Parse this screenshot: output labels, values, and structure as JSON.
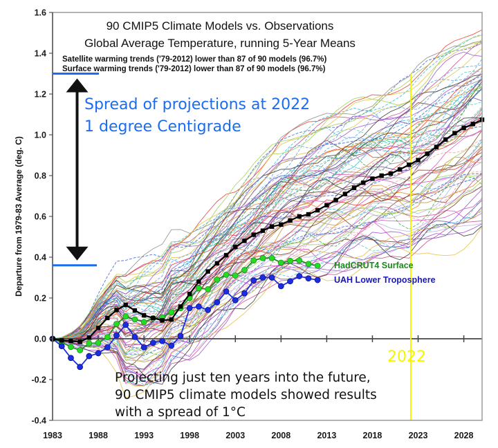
{
  "chart_data": {
    "type": "line",
    "title": "90 CMIP5 Climate Models vs. Observations",
    "subtitle": "Global Average Temperature, running 5-Year Means",
    "notes": [
      "Satellite warming trends ('79-2012) lower than 87 of 90 models (96.7%)",
      "Surface warming trends ('79-2012) lower than 87 of 90 models (96.7%)"
    ],
    "xlabel": "",
    "ylabel": "Departure from 1979-83 Average (deg. C)",
    "xlim": [
      1983,
      2030
    ],
    "ylim": [
      -0.4,
      1.6
    ],
    "x_ticks": [
      1983,
      1988,
      1993,
      1998,
      2003,
      2008,
      2013,
      2018,
      2023,
      2028
    ],
    "x_tick_labels": [
      "1983",
      "1988",
      "1993",
      "1998",
      "2003",
      "2008",
      "2013",
      "2018",
      "2023",
      "2028"
    ],
    "y_ticks": [
      -0.4,
      -0.2,
      0.0,
      0.2,
      0.4,
      0.6,
      0.8,
      1.0,
      1.2,
      1.4,
      1.6
    ],
    "y_tick_labels": [
      "-0.4",
      "-0.2",
      "0.0",
      "0.2",
      "0.4",
      "0.6",
      "0.8",
      "1.0",
      "1.2",
      "1.4",
      "1.6"
    ],
    "grid": false,
    "model_count": 90,
    "model_envelope": {
      "x": [
        1983,
        1988,
        1993,
        1998,
        2003,
        2008,
        2013,
        2018,
        2022,
        2026,
        2030
      ],
      "low": [
        -0.02,
        -0.1,
        -0.2,
        -0.1,
        0.15,
        0.25,
        0.3,
        0.38,
        0.36,
        0.45,
        0.54
      ],
      "high": [
        0.02,
        0.3,
        0.45,
        0.55,
        0.75,
        0.98,
        1.15,
        1.22,
        1.3,
        1.45,
        1.58
      ]
    },
    "model_colors": [
      "#e8352c",
      "#2ab7d8",
      "#6a3fb0",
      "#d98c2a",
      "#3aa34a",
      "#9b4fd1",
      "#c44a8a",
      "#2c5fcf",
      "#8a8a8a",
      "#e0c040",
      "#4fc9c1",
      "#7a3a20",
      "#d64ec4",
      "#5aa0e0",
      "#a0d04a",
      "#333333",
      "#f09a9a",
      "#b0b0e8"
    ],
    "series": [
      {
        "name": "Model mean",
        "color": "#000000",
        "marker": "square",
        "x": [
          1983,
          1984,
          1985,
          1986,
          1987,
          1988,
          1989,
          1990,
          1991,
          1992,
          1993,
          1994,
          1995,
          1996,
          1997,
          1998,
          1999,
          2000,
          2001,
          2002,
          2003,
          2004,
          2005,
          2006,
          2007,
          2008,
          2009,
          2010,
          2011,
          2012,
          2013,
          2014,
          2015,
          2016,
          2017,
          2018,
          2019,
          2020,
          2021,
          2022,
          2023,
          2024,
          2025,
          2026,
          2027,
          2028,
          2029,
          2030
        ],
        "y": [
          0.0,
          -0.008,
          -0.011,
          -0.015,
          0.006,
          0.053,
          0.102,
          0.141,
          0.166,
          0.139,
          0.115,
          0.102,
          0.09,
          0.094,
          0.158,
          0.22,
          0.28,
          0.33,
          0.37,
          0.41,
          0.45,
          0.48,
          0.51,
          0.53,
          0.55,
          0.56,
          0.58,
          0.6,
          0.61,
          0.63,
          0.655,
          0.68,
          0.71,
          0.74,
          0.765,
          0.785,
          0.8,
          0.81,
          0.83,
          0.853,
          0.876,
          0.907,
          0.94,
          0.977,
          1.008,
          1.034,
          1.053,
          1.074
        ]
      },
      {
        "name": "HadCRUT4 Surface",
        "color": "#22dd22",
        "marker": "circle",
        "x": [
          1983,
          1984,
          1985,
          1986,
          1987,
          1988,
          1989,
          1990,
          1991,
          1992,
          1993,
          1994,
          1995,
          1996,
          1997,
          1998,
          1999,
          2000,
          2001,
          2002,
          2003,
          2004,
          2005,
          2006,
          2007,
          2008,
          2009,
          2010,
          2011,
          2012
        ],
        "y": [
          0.0,
          -0.017,
          -0.04,
          -0.056,
          -0.023,
          -0.02,
          0.008,
          0.073,
          0.11,
          0.095,
          0.082,
          0.1,
          0.105,
          0.13,
          0.15,
          0.2,
          0.248,
          0.243,
          0.29,
          0.314,
          0.31,
          0.337,
          0.384,
          0.396,
          0.396,
          0.373,
          0.382,
          0.384,
          0.367,
          0.358
        ]
      },
      {
        "name": "UAH Lower Troposphere",
        "color": "#1a2ee0",
        "marker": "circle",
        "x": [
          1983,
          1984,
          1985,
          1986,
          1987,
          1988,
          1989,
          1990,
          1991,
          1992,
          1993,
          1994,
          1995,
          1996,
          1997,
          1998,
          1999,
          2000,
          2001,
          2002,
          2003,
          2004,
          2005,
          2006,
          2007,
          2008,
          2009,
          2010,
          2011,
          2012
        ],
        "y": [
          0.0,
          -0.036,
          -0.094,
          -0.138,
          -0.085,
          -0.071,
          -0.042,
          0.017,
          0.068,
          0.009,
          -0.042,
          -0.02,
          -0.011,
          -0.034,
          0.014,
          0.15,
          0.158,
          0.141,
          0.179,
          0.232,
          0.189,
          0.223,
          0.286,
          0.3,
          0.3,
          0.258,
          0.282,
          0.307,
          0.296,
          0.288
        ]
      }
    ],
    "reference_lines": [
      {
        "name": "2022 marker",
        "orientation": "vertical",
        "x": 2022.2,
        "y_range": [
          -0.4,
          1.3
        ],
        "color": "#f5f500"
      },
      {
        "name": "Zero line",
        "orientation": "horizontal",
        "y": 0.0,
        "color": "#444444"
      }
    ],
    "spread_markers": {
      "top": 1.3,
      "bottom": 0.36,
      "color": "#1a6cf0"
    },
    "annotations": {
      "spread_line1": "Spread of projections at 2022",
      "spread_line2": "1 degree Centigrade",
      "year_label": "2022",
      "footer_line1": "Projecting just ten years into the future,",
      "footer_line2": "90 CMIP5 climate models showed results",
      "footer_line3": "with a spread of 1°C",
      "legend_hadcrut": "HadCRUT4 Surface",
      "legend_uah": "UAH Lower Troposphere"
    }
  }
}
